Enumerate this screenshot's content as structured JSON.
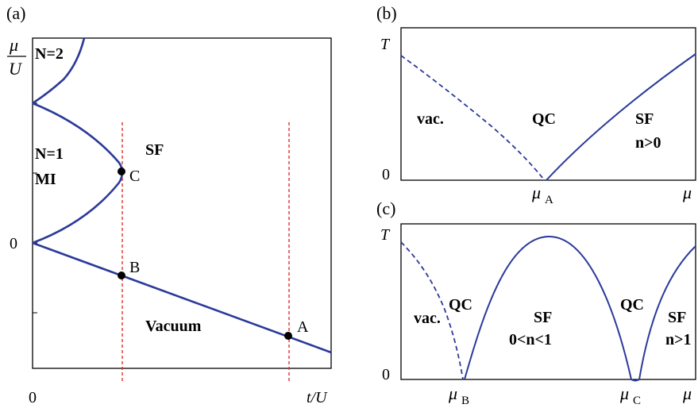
{
  "panels": {
    "a": {
      "tag": "(a)",
      "y_label_num": "μ",
      "y_label_den": "U",
      "x_label": "t/U",
      "x_tick_0": "0",
      "y_tick_0": "0",
      "regions": {
        "n2": "N=2",
        "n1": "N=1",
        "mi": "MI",
        "sf": "SF",
        "vacuum": "Vacuum"
      },
      "points": {
        "a": "A",
        "b": "B",
        "c": "C"
      }
    },
    "b": {
      "tag": "(b)",
      "y_label": "T",
      "y_tick_0": "0",
      "x_label": "μ",
      "x_tick_mu": "μ",
      "x_tick_sub": "A",
      "regions": {
        "vac": "vac.",
        "qc": "QC",
        "sf": "SF",
        "n": "n>0"
      }
    },
    "c": {
      "tag": "(c)",
      "y_label": "T",
      "y_tick_0": "0",
      "x_label": "μ",
      "x_tick_b_mu": "μ",
      "x_tick_b_sub": "B",
      "x_tick_c_mu": "μ",
      "x_tick_c_sub": "C",
      "regions": {
        "vac": "vac.",
        "qc1": "QC",
        "sf_mid": "SF",
        "n_mid": "0<n<1",
        "qc2": "QC",
        "sf_right": "SF",
        "n_right": "n>1"
      }
    }
  },
  "colors": {
    "curve": "#2b3a9a",
    "guide": "#e23030",
    "axis": "#000000",
    "point": "#000000"
  }
}
